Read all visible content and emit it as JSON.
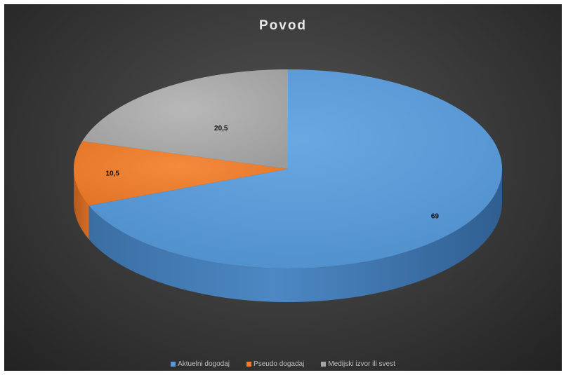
{
  "chart_data": {
    "type": "pie",
    "title": "Povod",
    "categories": [
      "Aktuelni dogodaj",
      "Pseudo dogadaj",
      "Medijski izvor ili svest"
    ],
    "values": [
      69,
      10.5,
      20.5
    ],
    "data_labels": [
      "69",
      "10,5",
      "20,5"
    ],
    "colors": [
      "#5b9bd5",
      "#ed7d31",
      "#a5a5a5"
    ],
    "legend_position": "bottom",
    "style": "3d"
  }
}
